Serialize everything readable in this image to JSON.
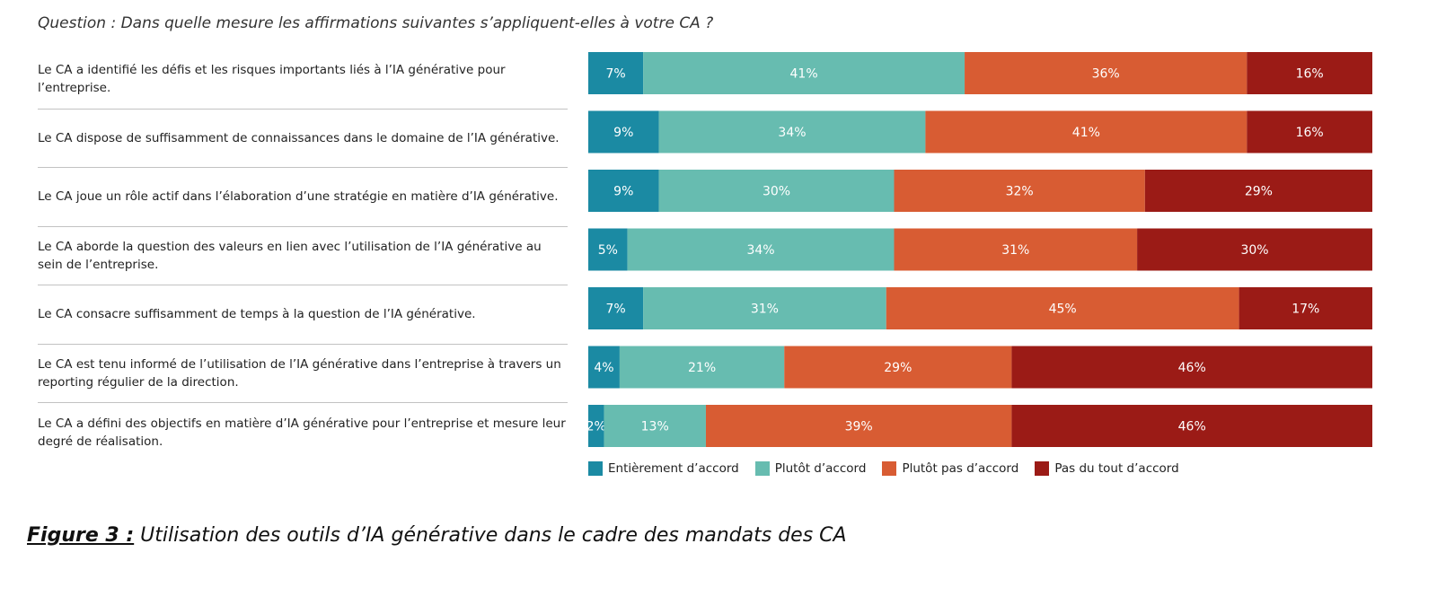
{
  "question": "Question : Dans quelle mesure les affirmations suivantes s’appliquent-elles à votre CA ?",
  "colors": {
    "entierement": "#1b8aa3",
    "plutot": "#67bcb0",
    "plutot_pas": "#d85c33",
    "pas_du_tout": "#9b1b16"
  },
  "legend": [
    {
      "label": "Entièrement d’accord",
      "color": "#1b8aa3"
    },
    {
      "label": "Plutôt d’accord",
      "color": "#67bcb0"
    },
    {
      "label": "Plutôt pas d’accord",
      "color": "#d85c33"
    },
    {
      "label": "Pas du tout d’accord",
      "color": "#9b1b16"
    }
  ],
  "chart_data": {
    "type": "bar",
    "orientation": "horizontal",
    "stacked": true,
    "unit": "%",
    "grid": false,
    "legend_position": "bottom",
    "categories": [
      "Le CA a identifié les défis et les risques importants liés à l’IA générative pour l’entreprise.",
      "Le CA dispose de suffisamment de connaissances dans le domaine de l’IA générative.",
      "Le CA joue un rôle actif dans l’élaboration d’une stratégie en matière d’IA générative.",
      "Le CA aborde la question des valeurs en lien avec l’utilisation de l’IA générative au sein de l’entreprise.",
      "Le CA consacre suffisamment de temps à la question de l’IA générative.",
      "Le CA est tenu informé de l’utilisation de l’IA générative dans l’entreprise à travers un reporting régulier de la direction.",
      "Le CA a défini des objectifs en matière d’IA générative pour l’entreprise et mesure leur degré de réalisation."
    ],
    "series": [
      {
        "name": "Entièrement d’accord",
        "values": [
          7,
          9,
          9,
          5,
          7,
          4,
          2
        ]
      },
      {
        "name": "Plutôt d’accord",
        "values": [
          41,
          34,
          30,
          34,
          31,
          21,
          13
        ]
      },
      {
        "name": "Plutôt pas d’accord",
        "values": [
          36,
          41,
          32,
          31,
          45,
          29,
          39
        ]
      },
      {
        "name": "Pas du tout d’accord",
        "values": [
          16,
          16,
          29,
          30,
          17,
          46,
          46
        ]
      }
    ]
  },
  "caption": {
    "prefix": "Figure 3 :",
    "text": " Utilisation des outils d’IA générative dans le cadre des mandats des CA"
  }
}
